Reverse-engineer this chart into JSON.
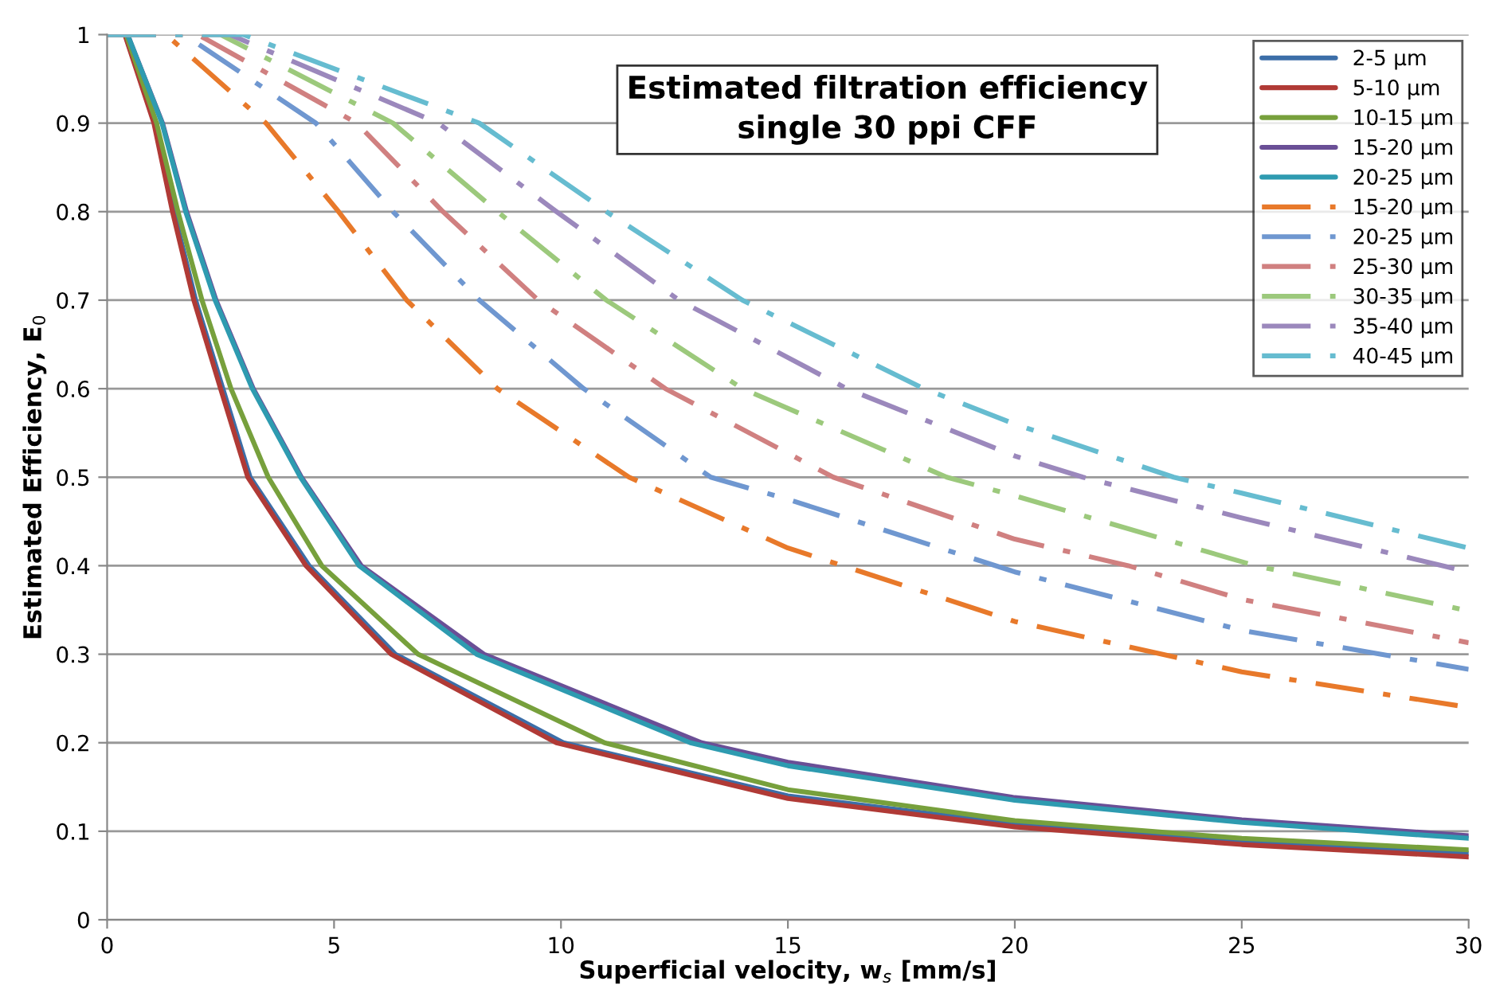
{
  "chart_data": {
    "type": "line",
    "title": "Estimated filtration efficiency\nsingle 30 ppi CFF",
    "xlabel": "Superficial velocity, w$_{s}$ [mm/s]",
    "ylabel": "Estimated Efficiency, E$_{0}$",
    "xlim": [
      0,
      30
    ],
    "ylim": [
      0,
      1
    ],
    "xticks": [
      0,
      5,
      10,
      15,
      20,
      25,
      30
    ],
    "yticks": [
      0,
      0.1,
      0.2,
      0.3,
      0.4,
      0.5,
      0.6,
      0.7,
      0.8,
      0.9,
      1
    ],
    "grid": "y",
    "legend": "top right",
    "marker": "none",
    "series": [
      {
        "name": "2-5 µm",
        "color": "#3c6ea8",
        "line_style": "solid",
        "x": [
          0,
          0.4,
          1.05,
          1.47,
          1.95,
          2.55,
          3.15,
          4.45,
          6.35,
          10.05,
          15,
          20,
          25,
          30
        ],
        "values": [
          1,
          1,
          0.9,
          0.8,
          0.7,
          0.6,
          0.5,
          0.4,
          0.3,
          0.2,
          0.14,
          0.108,
          0.088,
          0.075
        ]
      },
      {
        "name": "5-10 µm",
        "color": "#b03a36",
        "line_style": "solid",
        "x": [
          0,
          0.39,
          1.03,
          1.44,
          1.91,
          2.5,
          3.1,
          4.38,
          6.26,
          9.9,
          15,
          20,
          25,
          30
        ],
        "values": [
          1,
          1,
          0.9,
          0.8,
          0.7,
          0.6,
          0.5,
          0.4,
          0.3,
          0.2,
          0.137,
          0.105,
          0.085,
          0.071
        ]
      },
      {
        "name": "10-15 µm",
        "color": "#77a03c",
        "line_style": "solid",
        "x": [
          0,
          0.42,
          1.09,
          1.56,
          2.09,
          2.73,
          3.55,
          4.73,
          6.85,
          10.96,
          15,
          20,
          25,
          30
        ],
        "values": [
          1,
          1,
          0.9,
          0.8,
          0.7,
          0.6,
          0.5,
          0.4,
          0.3,
          0.2,
          0.147,
          0.112,
          0.092,
          0.079
        ]
      },
      {
        "name": "15-20 µm",
        "color": "#6a4f96",
        "line_style": "solid",
        "x": [
          0,
          0.45,
          1.22,
          1.75,
          2.4,
          3.22,
          4.28,
          5.6,
          8.3,
          13.1,
          15,
          20,
          25,
          30
        ],
        "values": [
          1,
          1,
          0.9,
          0.8,
          0.7,
          0.6,
          0.5,
          0.4,
          0.3,
          0.2,
          0.178,
          0.138,
          0.113,
          0.095
        ]
      },
      {
        "name": "20-25 µm",
        "color": "#2e9bb0",
        "line_style": "solid",
        "x": [
          0,
          0.45,
          1.21,
          1.73,
          2.38,
          3.2,
          4.26,
          5.55,
          8.14,
          12.85,
          15,
          20,
          25,
          30
        ],
        "values": [
          1,
          1,
          0.9,
          0.8,
          0.7,
          0.6,
          0.5,
          0.4,
          0.3,
          0.2,
          0.174,
          0.135,
          0.11,
          0.092
        ]
      },
      {
        "name": "15-20 µm",
        "color": "#e8792a",
        "line_style": "dashdot",
        "x": [
          0,
          1.3,
          3.5,
          5.1,
          6.6,
          8.6,
          11.5,
          15,
          20,
          25,
          30
        ],
        "values": [
          1,
          1,
          0.9,
          0.8,
          0.7,
          0.6,
          0.5,
          0.42,
          0.337,
          0.28,
          0.24
        ]
      },
      {
        "name": "20-25 µm",
        "color": "#6f97d0",
        "line_style": "dashdot",
        "x": [
          0,
          1.7,
          4.6,
          6.3,
          8.2,
          10.5,
          13.3,
          15,
          20,
          25,
          30
        ],
        "values": [
          1,
          1,
          0.9,
          0.8,
          0.7,
          0.6,
          0.5,
          0.475,
          0.393,
          0.327,
          0.283
        ]
      },
      {
        "name": "25-30 µm",
        "color": "#d08080",
        "line_style": "dashdot",
        "x": [
          0,
          2,
          5.5,
          7.4,
          9.5,
          12.3,
          16,
          20,
          22.5,
          25,
          30
        ],
        "values": [
          1,
          1,
          0.9,
          0.8,
          0.7,
          0.6,
          0.5,
          0.43,
          0.4,
          0.362,
          0.313
        ]
      },
      {
        "name": "30-35 µm",
        "color": "#9cc97c",
        "line_style": "dashdot",
        "x": [
          0,
          2.5,
          6.3,
          8.6,
          11,
          14,
          18.5,
          20,
          25.3,
          30
        ],
        "values": [
          1,
          1,
          0.9,
          0.8,
          0.7,
          0.6,
          0.5,
          0.479,
          0.4,
          0.349
        ]
      },
      {
        "name": "35-40 µm",
        "color": "#9b88bc",
        "line_style": "dashdot",
        "x": [
          0,
          2.7,
          7.3,
          9.9,
          12.6,
          16.3,
          20,
          21.5,
          25,
          30
        ],
        "values": [
          1,
          1,
          0.9,
          0.8,
          0.7,
          0.6,
          0.524,
          0.5,
          0.454,
          0.393
        ]
      },
      {
        "name": "40-45 µm",
        "color": "#66bcd0",
        "line_style": "dashdot",
        "x": [
          0,
          3,
          8.2,
          11,
          14,
          18,
          20,
          23.5,
          25,
          30
        ],
        "values": [
          1,
          1,
          0.9,
          0.8,
          0.7,
          0.6,
          0.56,
          0.5,
          0.482,
          0.42
        ]
      }
    ]
  }
}
